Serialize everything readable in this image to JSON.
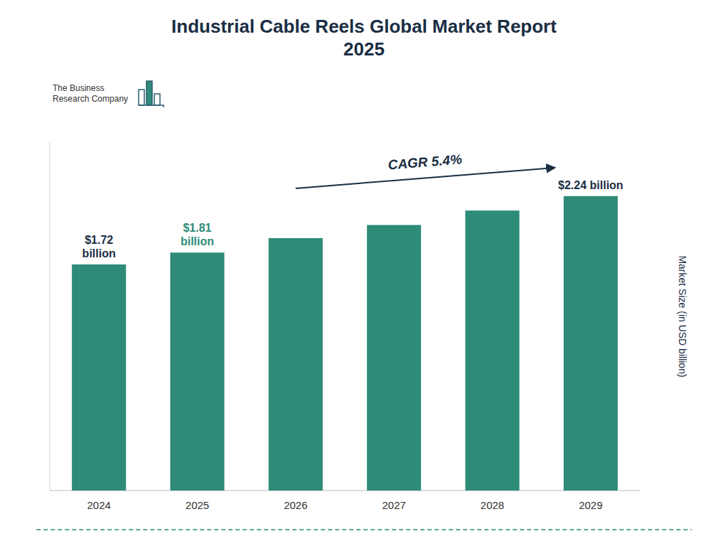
{
  "chart_data": {
    "type": "bar",
    "title": "Industrial Cable Reels Global Market Report\n2025",
    "categories": [
      "2024",
      "2025",
      "2026",
      "2027",
      "2028",
      "2029"
    ],
    "values": [
      1.72,
      1.81,
      1.92,
      2.02,
      2.13,
      2.24
    ],
    "color": "#2e8b78",
    "ylim": [
      0,
      2.65
    ],
    "ylabel": "Market Size (in USD billion)",
    "tick_labels": "x",
    "grid": false,
    "annotations": [
      {
        "text": "$1.72\nbillion",
        "color": "#1a2e44",
        "category": "2024"
      },
      {
        "text": "$1.81\nbillion",
        "color": "#2e8b78",
        "category": "2025"
      },
      {
        "text": "$2.24 billion",
        "color": "#1a2e44",
        "category": "2029"
      },
      {
        "text": "CAGR 5.4%",
        "color": "#1a2e44",
        "from": "2026",
        "to": "2029"
      },
      {
        "text": "The Business\nResearch Company",
        "color": "#333333"
      }
    ]
  }
}
